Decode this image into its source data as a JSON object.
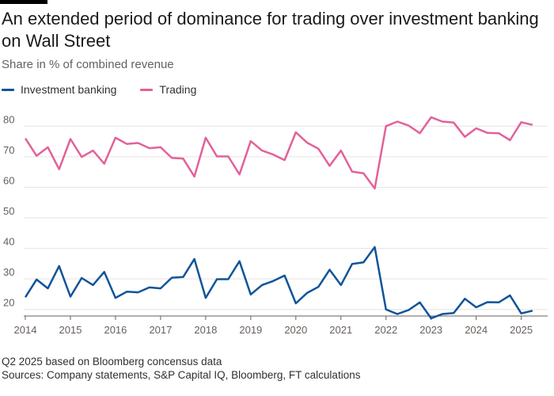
{
  "title": "An extended period of dominance for trading over investment banking on Wall Street",
  "subtitle": "Share in % of combined revenue",
  "footnote": "Q2 2025 based on Bloomberg concensus data",
  "sources": "Sources: Company statements, S&P Capital IQ, Bloomberg, FT calculations",
  "chart_data": {
    "type": "line",
    "ylim": [
      15,
      85
    ],
    "yticks": [
      20,
      30,
      40,
      50,
      60,
      70,
      80
    ],
    "xlim": [
      2014,
      2025.375
    ],
    "xticks": [
      "2014",
      "2015",
      "2016",
      "2017",
      "2018",
      "2019",
      "2020",
      "2021",
      "2022",
      "2023",
      "2024",
      "2025"
    ],
    "grid": true,
    "legend_position": "top-left",
    "x": [
      "Q1 2014",
      "Q2 2014",
      "Q3 2014",
      "Q4 2014",
      "Q1 2015",
      "Q2 2015",
      "Q3 2015",
      "Q4 2015",
      "Q1 2016",
      "Q2 2016",
      "Q3 2016",
      "Q4 2016",
      "Q1 2017",
      "Q2 2017",
      "Q3 2017",
      "Q4 2017",
      "Q1 2018",
      "Q2 2018",
      "Q3 2018",
      "Q4 2018",
      "Q1 2019",
      "Q2 2019",
      "Q3 2019",
      "Q4 2019",
      "Q1 2020",
      "Q2 2020",
      "Q3 2020",
      "Q4 2020",
      "Q1 2021",
      "Q2 2021",
      "Q3 2021",
      "Q4 2021",
      "Q1 2022",
      "Q2 2022",
      "Q3 2022",
      "Q4 2022",
      "Q1 2023",
      "Q2 2023",
      "Q3 2023",
      "Q4 2023",
      "Q1 2024",
      "Q2 2024",
      "Q3 2024",
      "Q4 2024",
      "Q1 2025",
      "Q2 2025"
    ],
    "series": [
      {
        "name": "Investment banking",
        "color": "#0f5499",
        "values": [
          24,
          29.8,
          26.9,
          34.2,
          24.2,
          30.3,
          28.0,
          32.3,
          23.8,
          25.8,
          25.6,
          27.2,
          26.9,
          30.4,
          30.6,
          36.5,
          23.8,
          29.9,
          29.9,
          35.8,
          24.9,
          28.0,
          29.3,
          31.1,
          22.0,
          25.4,
          27.4,
          33.0,
          28.0,
          34.9,
          35.4,
          40.4,
          20.0,
          18.5,
          19.8,
          22.3,
          17.1,
          18.5,
          18.8,
          23.5,
          20.7,
          22.4,
          22.3,
          24.6,
          18.7,
          19.6
        ]
      },
      {
        "name": "Trading",
        "color": "#e2619a",
        "values": [
          76.0,
          70.3,
          73.1,
          65.9,
          75.8,
          69.9,
          72.0,
          67.7,
          76.2,
          74.2,
          74.5,
          72.8,
          73.1,
          69.6,
          69.4,
          63.5,
          76.2,
          70.1,
          70.1,
          64.2,
          75.1,
          72.0,
          70.7,
          68.9,
          78.0,
          74.6,
          72.6,
          67.0,
          72.0,
          65.1,
          64.6,
          59.6,
          80.0,
          81.5,
          80.2,
          77.7,
          82.9,
          81.5,
          81.2,
          76.5,
          79.3,
          77.8,
          77.7,
          75.4,
          81.3,
          80.4
        ]
      }
    ]
  }
}
